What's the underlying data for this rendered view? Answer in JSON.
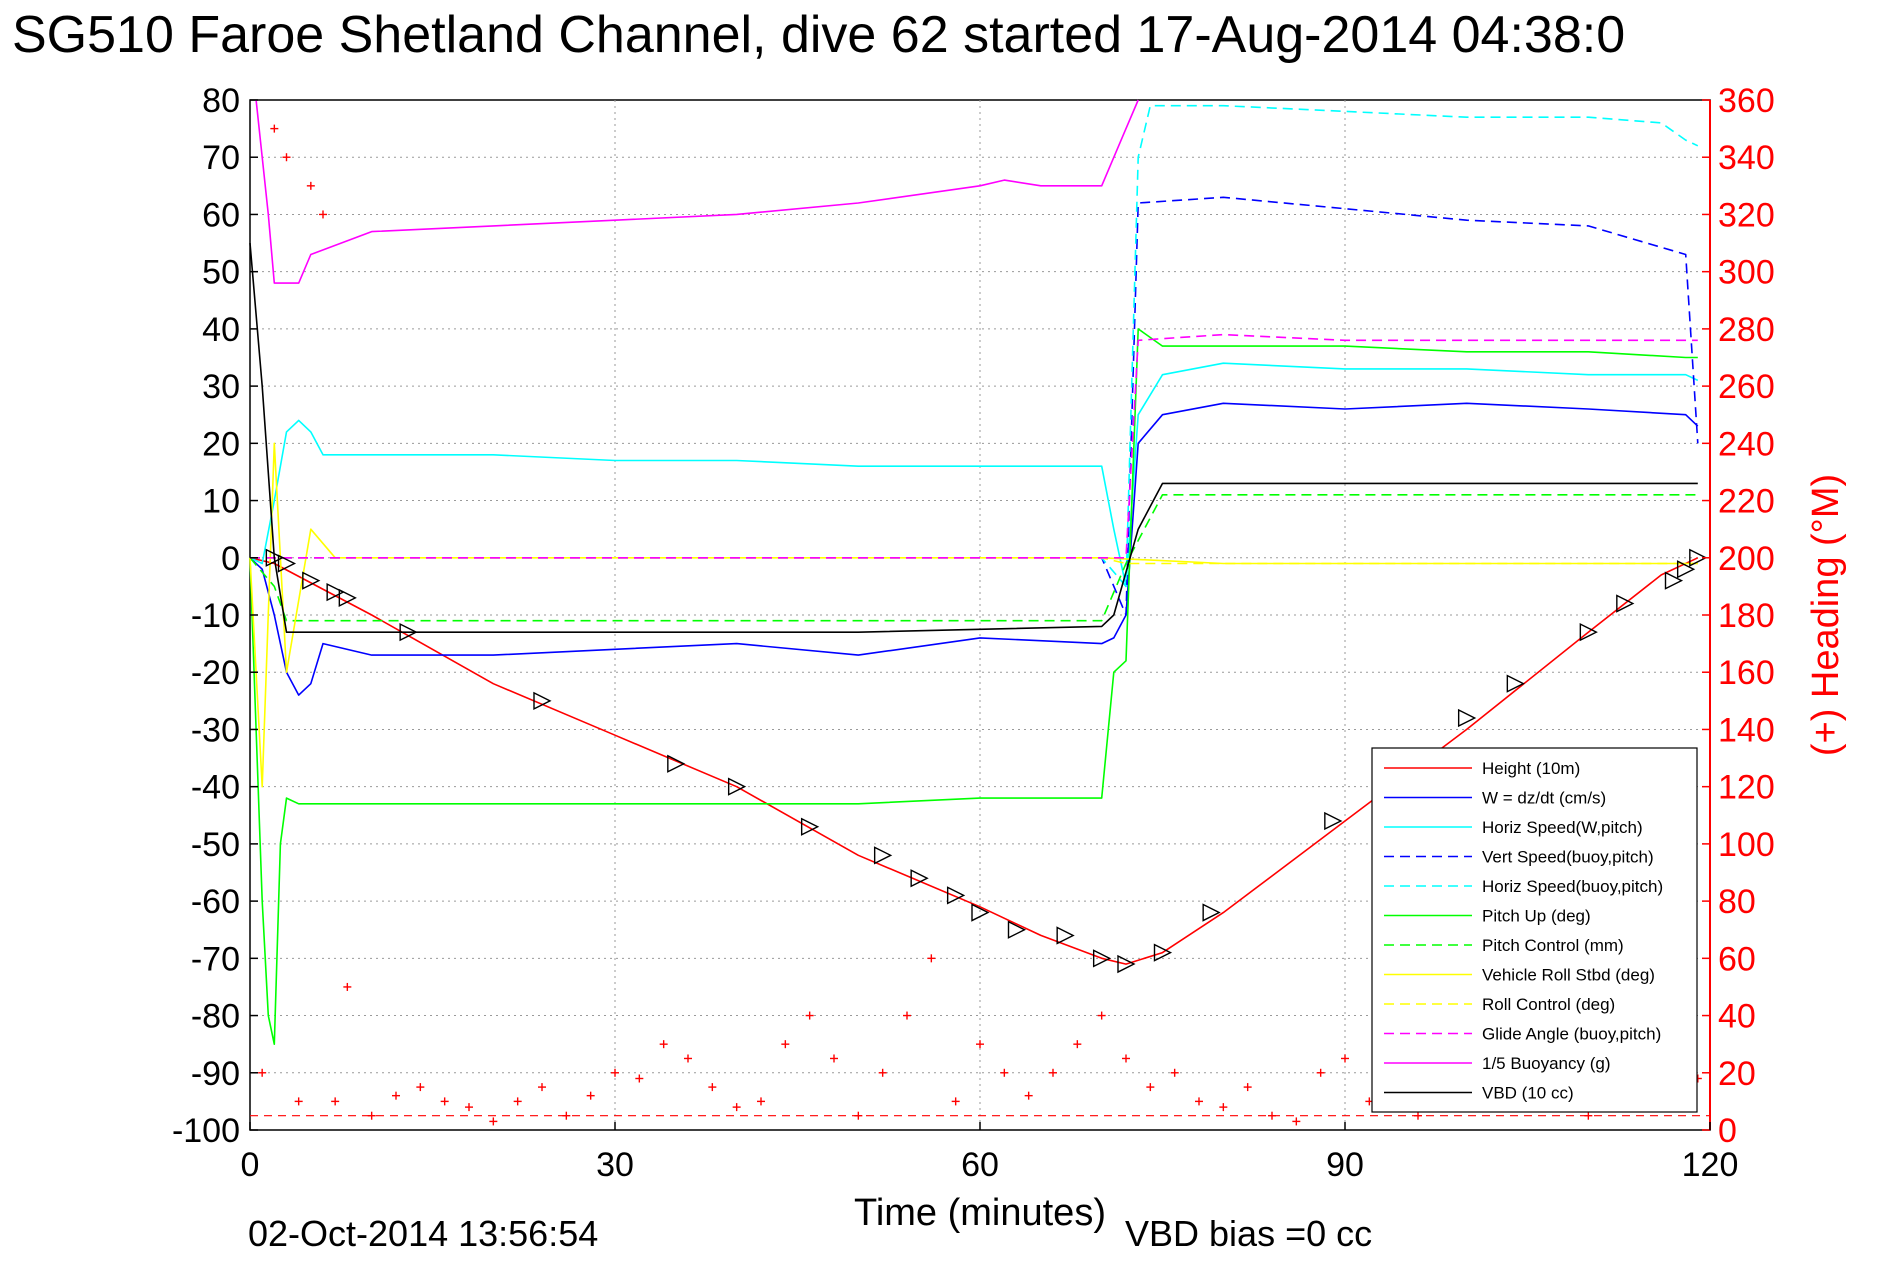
{
  "header": {
    "title": "SG510 Faroe Shetland Channel, dive 62 started 17-Aug-2014 04:38:0"
  },
  "footer": {
    "timestamp": "02-Oct-2014 13:56:54",
    "vbd_bias": "VBD bias =0 cc"
  },
  "chart_data": {
    "type": "line",
    "xlabel": "Time (minutes)",
    "ylabel": "",
    "y2label": "(+) Heading (°M)",
    "xlim": [
      0,
      120
    ],
    "ylim": [
      -100,
      80
    ],
    "y2lim": [
      0,
      360
    ],
    "xticks": [
      "0",
      "30",
      "60",
      "90",
      "120"
    ],
    "yticks": [
      "80",
      "70",
      "60",
      "50",
      "40",
      "30",
      "20",
      "10",
      "0",
      "-10",
      "-20",
      "-30",
      "-40",
      "-50",
      "-60",
      "-70",
      "-80",
      "-90",
      "-100"
    ],
    "y2ticks": [
      "360",
      "340",
      "320",
      "300",
      "280",
      "260",
      "240",
      "220",
      "200",
      "180",
      "160",
      "140",
      "120",
      "100",
      "80",
      "60",
      "40",
      "20",
      "0"
    ],
    "grid": true,
    "legend_position": "bottom-right",
    "colors": {
      "red": "#ff0000",
      "blue": "#0000ff",
      "cyan": "#00ffff",
      "green": "#00ff00",
      "yellow": "#ffff00",
      "magenta": "#ff00ff",
      "black": "#000000"
    },
    "series": [
      {
        "name": "Height (10m)",
        "color": "#ff0000",
        "dash": "solid",
        "x": [
          0,
          2,
          10,
          20,
          30,
          40,
          50,
          60,
          65,
          70,
          72,
          75,
          80,
          90,
          100,
          110,
          116,
          119
        ],
        "y": [
          0,
          -1,
          -10,
          -22,
          -31,
          -40,
          -52,
          -61,
          -66,
          -70,
          -71,
          -69,
          -62,
          -46,
          -30,
          -13,
          -3,
          0
        ]
      },
      {
        "name": "W = dz/dt (cm/s)",
        "color": "#0000ff",
        "dash": "solid",
        "x": [
          0,
          1,
          2,
          3,
          4,
          5,
          6,
          10,
          20,
          30,
          40,
          50,
          60,
          70,
          71,
          72,
          73,
          75,
          80,
          90,
          100,
          110,
          118,
          119
        ],
        "y": [
          0,
          -2,
          -10,
          -20,
          -24,
          -22,
          -15,
          -17,
          -17,
          -16,
          -15,
          -17,
          -14,
          -15,
          -14,
          -10,
          20,
          25,
          27,
          26,
          27,
          26,
          25,
          23
        ]
      },
      {
        "name": "Horiz Speed(W,pitch)",
        "color": "#00ffff",
        "dash": "solid",
        "x": [
          0,
          1,
          2,
          3,
          4,
          5,
          6,
          10,
          20,
          30,
          40,
          50,
          60,
          70,
          71,
          72,
          73,
          75,
          80,
          90,
          100,
          110,
          118,
          119
        ],
        "y": [
          0,
          -1,
          10,
          22,
          24,
          22,
          18,
          18,
          18,
          17,
          17,
          16,
          16,
          16,
          5,
          -5,
          25,
          32,
          34,
          33,
          33,
          32,
          32,
          31
        ]
      },
      {
        "name": "Vert Speed(buoy,pitch)",
        "color": "#0000ff",
        "dash": "dashed",
        "x": [
          0,
          2,
          4,
          20,
          40,
          60,
          70,
          72,
          73,
          80,
          90,
          100,
          110,
          118,
          119
        ],
        "y": [
          0,
          0,
          0,
          0,
          0,
          0,
          0,
          -10,
          62,
          63,
          61,
          59,
          58,
          53,
          20
        ]
      },
      {
        "name": "Horiz Speed(buoy,pitch)",
        "color": "#00ffff",
        "dash": "dashed",
        "x": [
          0,
          2,
          4,
          20,
          40,
          60,
          70,
          72,
          73,
          74,
          80,
          90,
          100,
          110,
          116,
          118,
          119
        ],
        "y": [
          0,
          0,
          0,
          0,
          0,
          0,
          0,
          -5,
          70,
          79,
          79,
          78,
          77,
          77,
          76,
          73,
          72
        ]
      },
      {
        "name": "Pitch Up (deg)",
        "color": "#00ff00",
        "dash": "solid",
        "x": [
          0,
          1,
          1.5,
          2,
          2.5,
          3,
          4,
          10,
          20,
          30,
          40,
          50,
          60,
          70,
          71,
          72,
          73,
          75,
          80,
          90,
          100,
          110,
          118,
          119
        ],
        "y": [
          0,
          -60,
          -80,
          -85,
          -50,
          -42,
          -43,
          -43,
          -43,
          -43,
          -43,
          -43,
          -42,
          -42,
          -20,
          -18,
          40,
          37,
          37,
          37,
          36,
          36,
          35,
          35
        ]
      },
      {
        "name": "Pitch Control (mm)",
        "color": "#00ff00",
        "dash": "dashed",
        "x": [
          0,
          2,
          3,
          10,
          30,
          50,
          70,
          72,
          75,
          80,
          100,
          119
        ],
        "y": [
          0,
          -5,
          -11,
          -11,
          -11,
          -11,
          -11,
          -1,
          11,
          11,
          11,
          11
        ]
      },
      {
        "name": "Vehicle Roll Stbd (deg)",
        "color": "#ffff00",
        "dash": "solid",
        "x": [
          0,
          1,
          2,
          3,
          5,
          7,
          10,
          20,
          30,
          40,
          50,
          60,
          70,
          80,
          90,
          100,
          110,
          119
        ],
        "y": [
          0,
          -40,
          20,
          -20,
          5,
          0,
          0,
          0,
          0,
          0,
          0,
          0,
          0,
          -1,
          -1,
          -1,
          -1,
          -1
        ]
      },
      {
        "name": "Roll Control (deg)",
        "color": "#ffff00",
        "dash": "dashed",
        "x": [
          0,
          2,
          5,
          10,
          30,
          50,
          70,
          72,
          90,
          110,
          119
        ],
        "y": [
          0,
          0,
          0,
          0,
          0,
          0,
          0,
          -1,
          -1,
          -1,
          -1
        ]
      },
      {
        "name": "Glide Angle (buoy,pitch)",
        "color": "#ff00ff",
        "dash": "dashed",
        "x": [
          0,
          10,
          30,
          50,
          70,
          72,
          73,
          80,
          90,
          100,
          110,
          119
        ],
        "y": [
          0,
          0,
          0,
          0,
          0,
          0,
          38,
          39,
          38,
          38,
          38,
          38
        ]
      },
      {
        "name": "1/5 Buoyancy (g)",
        "color": "#ff00ff",
        "dash": "solid",
        "x": [
          0.5,
          1.5,
          2,
          4,
          5,
          10,
          20,
          30,
          40,
          50,
          60,
          62,
          65,
          70,
          72,
          73
        ],
        "y": [
          80,
          60,
          48,
          48,
          53,
          57,
          58,
          59,
          60,
          62,
          65,
          66,
          65,
          65,
          75,
          80
        ]
      },
      {
        "name": "VBD (10 cc)",
        "color": "#000000",
        "dash": "solid",
        "x": [
          0,
          1,
          2,
          3,
          10,
          30,
          50,
          70,
          71,
          73,
          75,
          80,
          100,
          119
        ],
        "y": [
          55,
          30,
          0,
          -13,
          -13,
          -13,
          -13,
          -12,
          -10,
          5,
          13,
          13,
          13,
          13
        ]
      }
    ],
    "heading": {
      "name": "Heading",
      "color": "#ff0000",
      "x": [
        1,
        2,
        3,
        4,
        5,
        6,
        7,
        8,
        10,
        12,
        14,
        16,
        18,
        20,
        22,
        24,
        26,
        28,
        30,
        32,
        34,
        36,
        38,
        40,
        42,
        44,
        46,
        48,
        50,
        52,
        54,
        56,
        58,
        60,
        62,
        64,
        66,
        68,
        70,
        72,
        74,
        76,
        78,
        80,
        82,
        84,
        86,
        88,
        90,
        92,
        94,
        96,
        98,
        100,
        102,
        104,
        106,
        108,
        110,
        112,
        114,
        116,
        118,
        119
      ],
      "y": [
        20,
        350,
        340,
        10,
        330,
        320,
        10,
        50,
        5,
        12,
        15,
        10,
        8,
        3,
        10,
        15,
        5,
        12,
        20,
        18,
        30,
        25,
        15,
        8,
        10,
        30,
        40,
        25,
        5,
        20,
        40,
        60,
        10,
        30,
        20,
        12,
        20,
        30,
        40,
        25,
        15,
        20,
        10,
        8,
        15,
        5,
        3,
        20,
        25,
        10,
        8,
        5,
        12,
        15,
        18,
        8,
        20,
        10,
        5,
        12,
        8,
        15,
        20,
        18
      ]
    },
    "depth_markers": {
      "x": [
        2,
        3,
        5,
        7,
        8,
        13,
        24,
        35,
        40,
        46,
        52,
        55,
        58,
        60,
        63,
        67,
        70,
        72,
        75,
        79,
        89,
        100,
        104,
        110,
        113,
        117,
        118,
        119
      ],
      "y": [
        0,
        -1,
        -4,
        -6,
        -7,
        -13,
        -25,
        -36,
        -40,
        -47,
        -52,
        -56,
        -59,
        -62,
        -65,
        -66,
        -70,
        -71,
        -69,
        -62,
        -46,
        -28,
        -22,
        -13,
        -8,
        -4,
        -2,
        0
      ]
    }
  }
}
